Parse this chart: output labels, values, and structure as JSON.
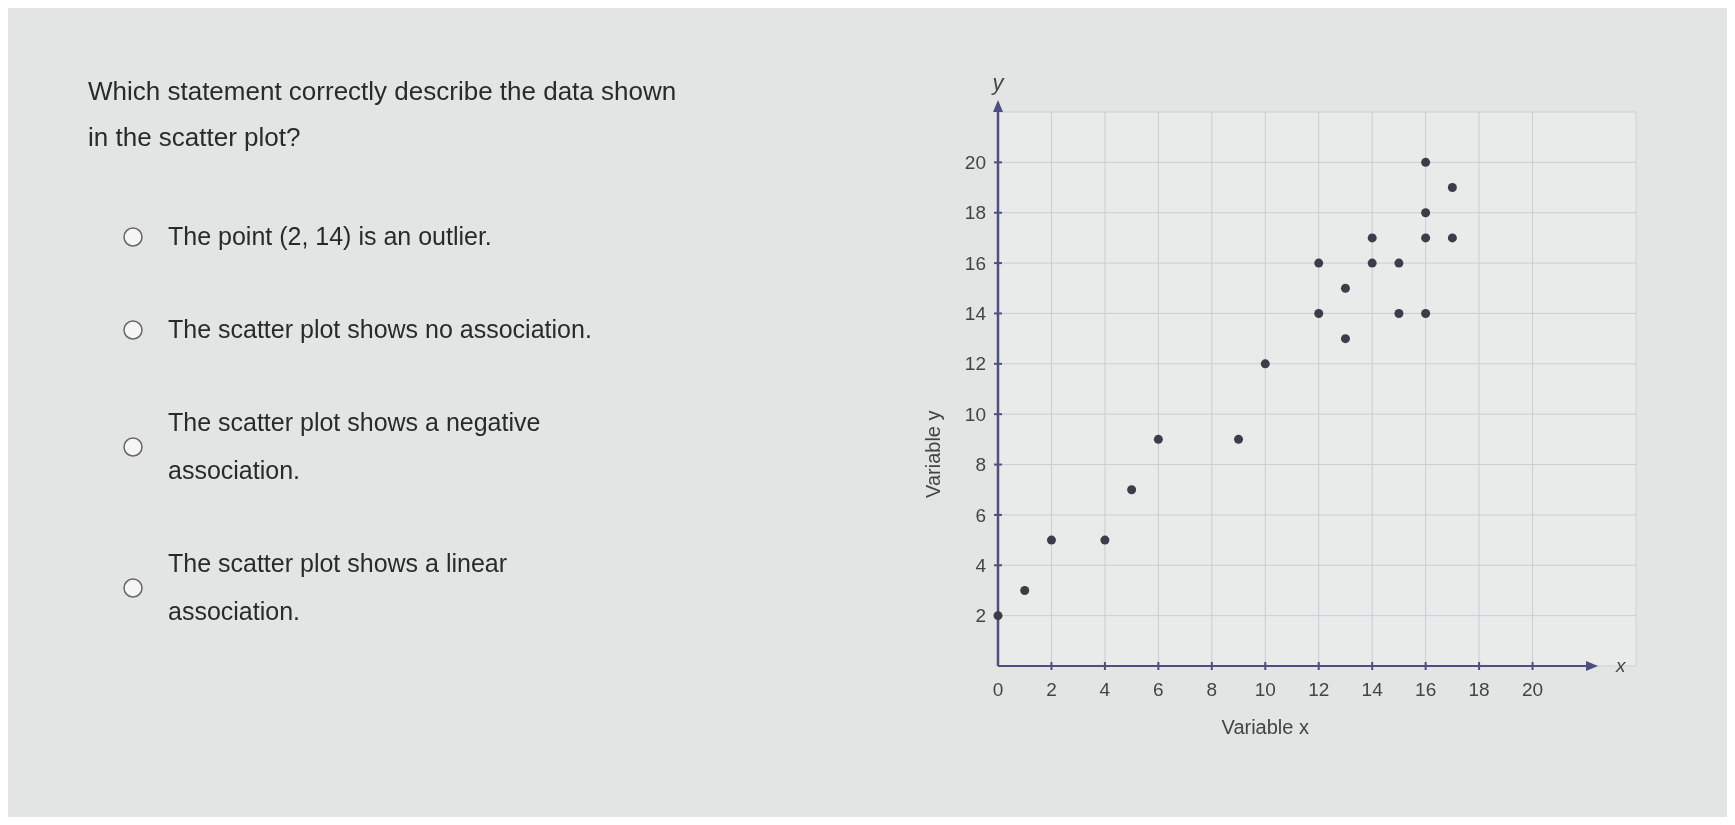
{
  "chart_data": {
    "type": "scatter",
    "title": "Which statement correctly describe the data shown in the scatter plot?",
    "annotations": [
      "The point (2, 14) is an outlier.",
      "The scatter plot shows no association.",
      "The scatter plot shows a negative association.",
      "The scatter plot shows a linear association.",
      "x",
      "y"
    ],
    "xlabel": "Variable x",
    "ylabel": "Variable y",
    "series": [
      {
        "color": "#3b3d48",
        "x": [
          0,
          1,
          2,
          4,
          5,
          6,
          9,
          10,
          12,
          12,
          13,
          13,
          14,
          14,
          15,
          15,
          16,
          16,
          16,
          16,
          17,
          17
        ],
        "values": [
          2,
          3,
          5,
          5,
          7,
          9,
          9,
          12,
          16,
          14,
          15,
          13,
          17,
          16,
          16,
          14,
          20,
          18,
          17,
          14,
          19,
          17
        ]
      }
    ],
    "xlim": [
      0,
      22
    ],
    "ylim": [
      0,
      22
    ],
    "xticks": [
      0,
      2,
      4,
      6,
      8,
      10,
      12,
      14,
      16,
      18,
      20
    ],
    "yticks": [
      2,
      4,
      6,
      8,
      10,
      12,
      14,
      16,
      18,
      20
    ],
    "grid": true,
    "marker": "circle"
  }
}
